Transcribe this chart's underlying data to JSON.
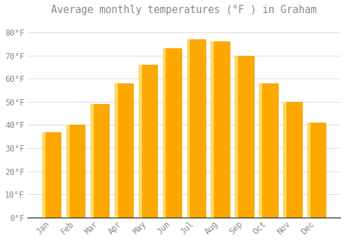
{
  "title": "Average monthly temperatures (°F ) in Graham",
  "months": [
    "Jan",
    "Feb",
    "Mar",
    "Apr",
    "May",
    "Jun",
    "Jul",
    "Aug",
    "Sep",
    "Oct",
    "Nov",
    "Dec"
  ],
  "values": [
    37,
    40,
    49,
    58,
    66,
    73,
    77,
    76,
    70,
    58,
    50,
    41
  ],
  "bar_color_main": "#FCA800",
  "bar_color_light": "#FFD966",
  "bar_color_edge": "#E8A000",
  "background_color": "#FFFFFF",
  "grid_color": "#DDDDDD",
  "text_color": "#888888",
  "axis_color": "#333333",
  "ylim": [
    0,
    85
  ],
  "yticks": [
    0,
    10,
    20,
    30,
    40,
    50,
    60,
    70,
    80
  ],
  "ylabel_suffix": "°F",
  "title_fontsize": 10.5,
  "tick_fontsize": 8.5,
  "bar_width": 0.78
}
